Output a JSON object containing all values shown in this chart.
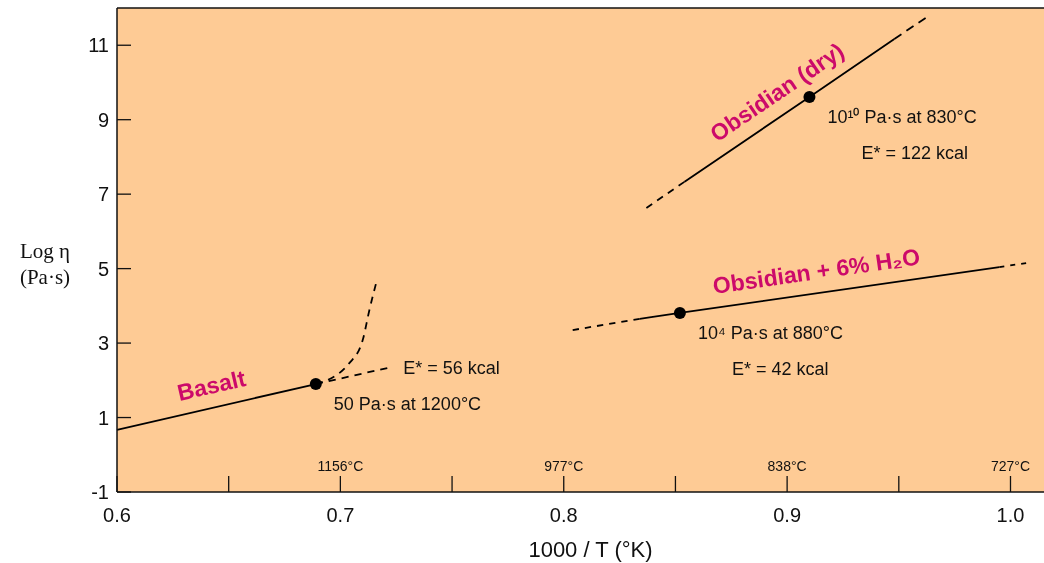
{
  "chart_data": {
    "type": "line",
    "xlabel": "1000 / T (°K)",
    "ylabel": "Log η (Pa·s)",
    "xlim": [
      0.6,
      1.015
    ],
    "ylim": [
      -1,
      12
    ],
    "xticks": [
      0.6,
      {
        "value": 0.65,
        "label": null
      },
      0.7,
      {
        "value": 0.75,
        "label": null
      },
      0.8,
      {
        "value": 0.85,
        "label": null
      },
      0.9,
      {
        "value": 0.95,
        "label": null
      },
      {
        "value": 1,
        "label": "1.0"
      }
    ],
    "yticks": [
      -1,
      1,
      3,
      5,
      7,
      9,
      11
    ],
    "marker": "none",
    "series": [
      {
        "name": "Basalt",
        "color": "#000000",
        "line_style": "solid",
        "x": [
          0.6,
          0.689
        ],
        "values": [
          0.67,
          1.9
        ]
      },
      {
        "color": "#000000",
        "line_style": "dashed",
        "x": [
          0.689,
          0.721
        ],
        "values": [
          1.9,
          2.33
        ]
      },
      {
        "color": "#000000",
        "line_style": "dashed",
        "x": [
          0.689,
          0.704,
          0.71,
          0.713,
          0.716
        ],
        "values": [
          1.9,
          2.46,
          3.08,
          3.89,
          4.61
        ]
      },
      {
        "color": "#000000",
        "line_style": "dashed",
        "x": [
          0.837,
          0.854
        ],
        "values": [
          6.63,
          7.33
        ]
      },
      {
        "name": "Obsidian (dry)",
        "color": "#000000",
        "line_style": "solid",
        "x": [
          0.854,
          0.91,
          0.948
        ],
        "values": [
          7.33,
          9.61,
          11.17
        ]
      },
      {
        "color": "#000000",
        "line_style": "dashed",
        "x": [
          0.948,
          0.962
        ],
        "values": [
          11.17,
          11.73
        ]
      },
      {
        "color": "#000000",
        "line_style": "dashed",
        "x": [
          0.804,
          0.834
        ],
        "values": [
          3.35,
          3.65
        ]
      },
      {
        "name": "Obsidian + 6% H₂O",
        "color": "#000000",
        "line_style": "solid",
        "x": [
          0.834,
          0.852,
          0.995
        ],
        "values": [
          3.65,
          3.81,
          5.04
        ]
      },
      {
        "color": "#000000",
        "line_style": "dashed",
        "x": [
          0.995,
          1.007
        ],
        "values": [
          5.04,
          5.15
        ]
      },
      {
        "type": "scatter",
        "marker": "circle",
        "color": "#000000",
        "x": [
          0.689,
          0.852,
          0.91
        ],
        "values": [
          1.9,
          3.81,
          9.61
        ]
      }
    ],
    "annotations": [
      {
        "text": "10¹⁰ Pa·s at 830°C\nE* = 122 kcal",
        "x": 0.91,
        "y": 9.61
      },
      {
        "text": "10⁴  Pa·s at 880°C\nE* = 42 kcal",
        "x": 0.852,
        "y": 3.81
      },
      "1156°C",
      "977°C",
      "838°C",
      "727°C",
      {
        "text": "E* = 56 kcal",
        "x": 0.721,
        "y": 2.33
      },
      {
        "text": "50 Pa·s at 1200°C",
        "x": 0.689,
        "y": 1.9
      }
    ]
  }
}
